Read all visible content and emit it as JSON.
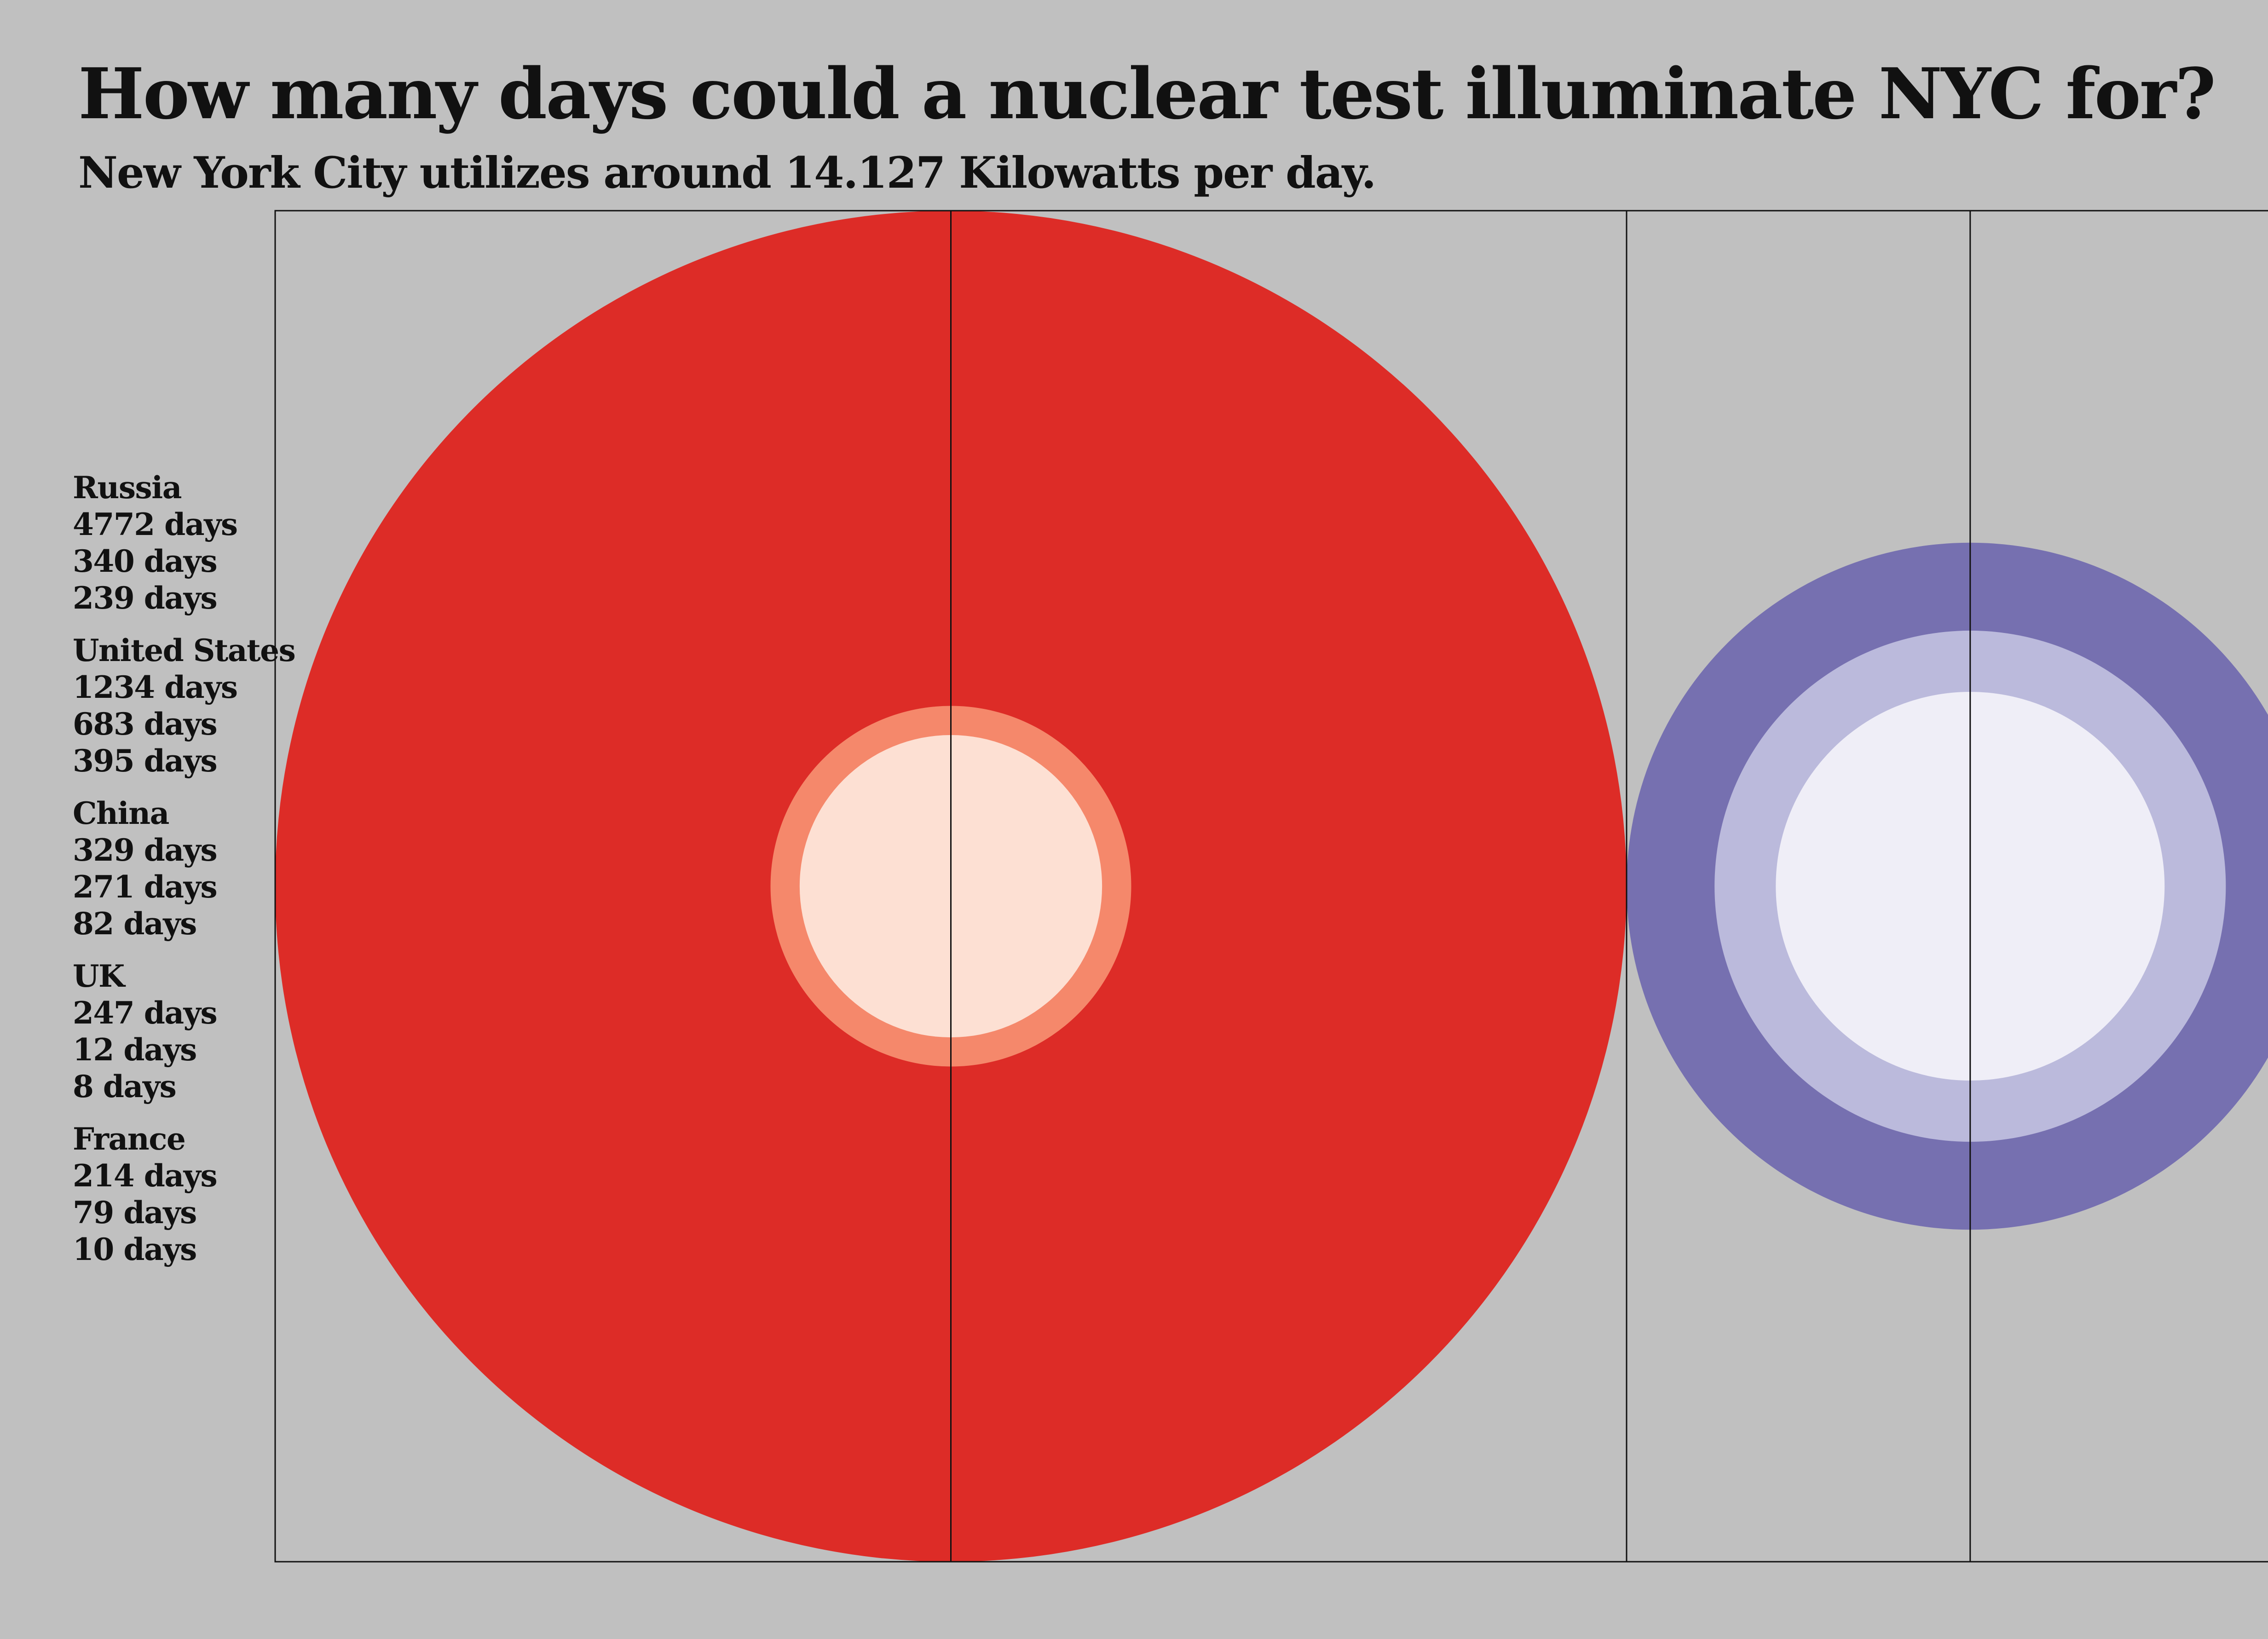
{
  "title": "How many days could a nuclear test illuminate NYC for?",
  "subtitle": "New York City utilizes around  14.127 Kilowatts per day.",
  "legend": [
    {
      "country": "Russia",
      "lines": [
        "4772 days",
        "340 days",
        "239 days"
      ]
    },
    {
      "country": "United States",
      "lines": [
        "1234 days",
        "683 days",
        "395 days"
      ]
    },
    {
      "country": "China",
      "lines": [
        "329 days",
        "271 days",
        "82 days"
      ]
    },
    {
      "country": "UK",
      "lines": [
        "247 days",
        "12 days",
        "8 days"
      ]
    },
    {
      "country": "France",
      "lines": [
        "214 days",
        "79 days",
        "10 days"
      ]
    }
  ],
  "chart_data": {
    "type": "bubble",
    "title": "How many days could a nuclear test illuminate NYC for?",
    "subtitle": "New York City utilizes around  14.127 Kilowatts per day.",
    "unit": "days",
    "layout": "nested concentric circles per country, area proportional to value, circles placed side by side",
    "series": [
      {
        "country": "Russia",
        "values": [
          4772,
          340,
          239
        ],
        "colors": [
          "#dd2c27",
          "#f5886b",
          "#fde0d3"
        ]
      },
      {
        "country": "United States",
        "values": [
          1234,
          683,
          395
        ],
        "colors": [
          "#7670b0",
          "#bbbadc",
          "#efeef7"
        ]
      },
      {
        "country": "China",
        "values": [
          329,
          271,
          82
        ],
        "colors": [
          "#2e9b4a",
          "#a0da94",
          "#e6f5e0"
        ]
      },
      {
        "country": "UK",
        "values": [
          247,
          12,
          8
        ],
        "colors": [
          "#e3480f",
          "#f08a4f",
          "#fbd0ad"
        ]
      },
      {
        "country": "France",
        "values": [
          214,
          79,
          10
        ],
        "colors": [
          "#2f7fc0",
          "#8ebfe0",
          "#dbeaf5"
        ]
      }
    ],
    "grid": "vertical lines through each circle center and at circle edges",
    "frame": true
  }
}
